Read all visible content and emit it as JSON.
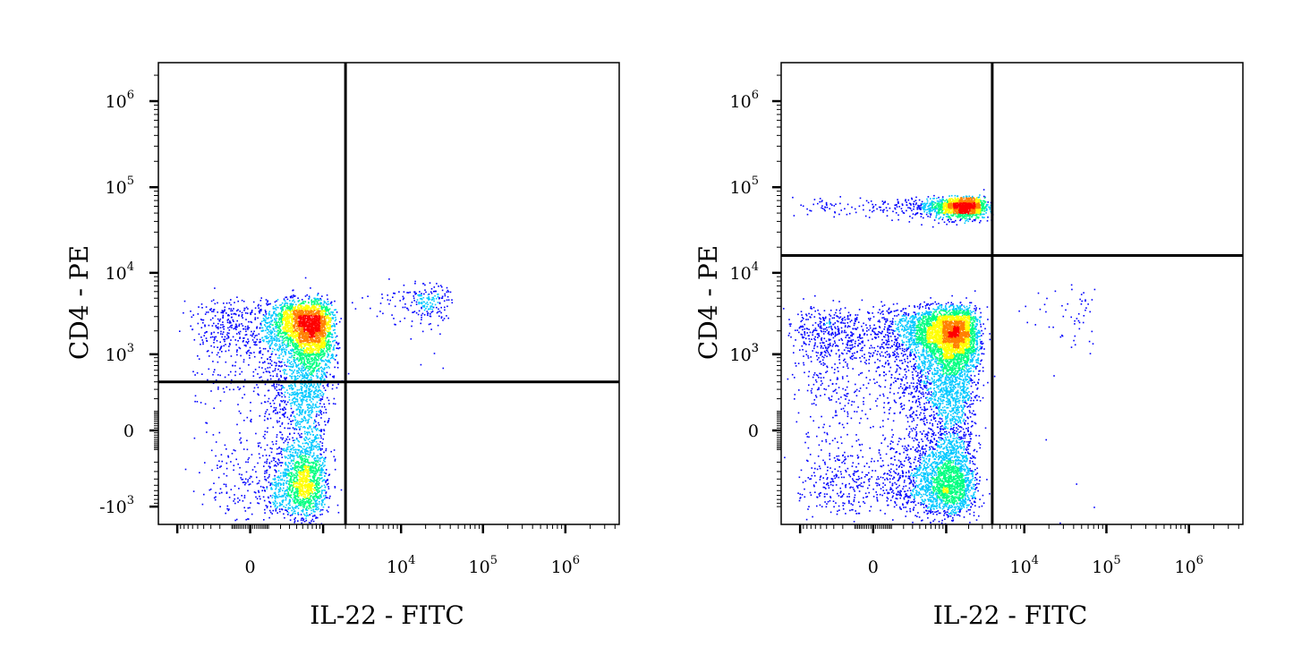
{
  "chart_data": [
    {
      "type": "scatter",
      "subtype": "flow-cytometry-density-dotplot",
      "title": "",
      "xlabel": "IL-22 - FITC",
      "ylabel": "CD4 - PE",
      "x_scale": "biexponential",
      "y_scale": "biexponential",
      "x_ticks": [
        {
          "base": "0",
          "exp": ""
        },
        {
          "base": "10",
          "exp": "4"
        },
        {
          "base": "10",
          "exp": "5"
        },
        {
          "base": "10",
          "exp": "6"
        }
      ],
      "y_ticks": [
        {
          "base": "10",
          "exp": "6"
        },
        {
          "base": "10",
          "exp": "5"
        },
        {
          "base": "10",
          "exp": "4"
        },
        {
          "base": "10",
          "exp": "3"
        },
        {
          "base": "0",
          "exp": ""
        },
        {
          "base": "-10",
          "exp": "3"
        }
      ],
      "gate": {
        "x": 2000,
        "y": 400
      },
      "populations": [
        {
          "name": "",
          "count": 3800,
          "x_center": 500,
          "y_center": 1800,
          "x_spread": 700,
          "y_spread": 2500,
          "density": "high"
        },
        {
          "name": "",
          "count": 1700,
          "x_center": 450,
          "y_center": -300,
          "x_spread": 500,
          "y_spread": 700,
          "density": "medium"
        },
        {
          "name": "",
          "count": 220,
          "x_center": 20000,
          "y_center": 4500,
          "x_spread": 15000,
          "y_spread": 2500,
          "density": "low"
        }
      ],
      "grid": false,
      "legend": "none"
    },
    {
      "type": "scatter",
      "subtype": "flow-cytometry-density-dotplot",
      "title": "",
      "xlabel": "IL-22 - FITC",
      "ylabel": "CD4 - PE",
      "x_scale": "biexponential",
      "y_scale": "biexponential",
      "x_ticks": [
        {
          "base": "0",
          "exp": ""
        },
        {
          "base": "10",
          "exp": "4"
        },
        {
          "base": "10",
          "exp": "5"
        },
        {
          "base": "10",
          "exp": "6"
        }
      ],
      "y_ticks": [
        {
          "base": "10",
          "exp": "6"
        },
        {
          "base": "10",
          "exp": "5"
        },
        {
          "base": "10",
          "exp": "4"
        },
        {
          "base": "10",
          "exp": "3"
        },
        {
          "base": "0",
          "exp": ""
        },
        {
          "base": "10",
          "exp": "3"
        }
      ],
      "gate": {
        "x": 4000,
        "y": 16000
      },
      "populations": [
        {
          "name": "",
          "count": 1500,
          "x_center": 1500,
          "y_center": 60000,
          "x_spread": 1500,
          "y_spread": 15000,
          "density": "very-high"
        },
        {
          "name": "",
          "count": 5200,
          "x_center": 900,
          "y_center": 1500,
          "x_spread": 1400,
          "y_spread": 2000,
          "density": "high"
        },
        {
          "name": "",
          "count": 2600,
          "x_center": 800,
          "y_center": -300,
          "x_spread": 1200,
          "y_spread": 700,
          "density": "medium"
        },
        {
          "name": "",
          "count": 60,
          "x_center": 40000,
          "y_center": 3000,
          "x_spread": 30000,
          "y_spread": 3000,
          "density": "low"
        }
      ],
      "grid": false,
      "legend": "none"
    }
  ],
  "colors": {
    "low": "#0000ff",
    "medium-low": "#00c8ff",
    "medium": "#00ff80",
    "medium-high": "#ffff00",
    "high": "#ff8000",
    "peak": "#ff0000",
    "axes": "#000000",
    "gate_line": "#000000"
  }
}
